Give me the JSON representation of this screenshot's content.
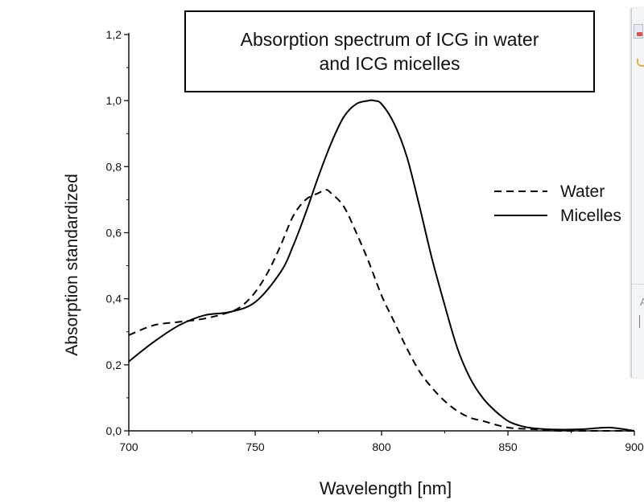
{
  "chart_data": {
    "type": "line",
    "title": [
      "Absorption spectrum of ICG in water",
      "and ICG micelles"
    ],
    "xlabel": "Wavelength [nm]",
    "ylabel": "Absorption standardized",
    "xlim": [
      700,
      900
    ],
    "ylim": [
      0.0,
      1.2
    ],
    "x_ticks": [
      700,
      750,
      800,
      850,
      900
    ],
    "x_tick_labels": [
      "700",
      "750",
      "800",
      "850",
      "900"
    ],
    "y_ticks": [
      0.0,
      0.2,
      0.4,
      0.6,
      0.8,
      1.0,
      1.2
    ],
    "y_tick_labels": [
      "0,0",
      "0,2",
      "0,4",
      "0,6",
      "0,8",
      "1,0",
      "1,2"
    ],
    "grid": false,
    "legend_position": "right",
    "series": [
      {
        "name": "Water",
        "style": "dashed",
        "x": [
          700,
          710,
          720,
          730,
          740,
          745,
          750,
          755,
          760,
          765,
          770,
          775,
          778,
          780,
          785,
          790,
          795,
          800,
          805,
          810,
          815,
          820,
          825,
          830,
          835,
          840,
          850,
          860,
          870,
          880,
          890,
          900
        ],
        "y": [
          0.29,
          0.32,
          0.33,
          0.34,
          0.36,
          0.38,
          0.42,
          0.48,
          0.56,
          0.65,
          0.7,
          0.72,
          0.73,
          0.72,
          0.68,
          0.6,
          0.51,
          0.41,
          0.33,
          0.25,
          0.18,
          0.13,
          0.09,
          0.06,
          0.04,
          0.03,
          0.01,
          0.005,
          0.0,
          0.0,
          0.0,
          0.0
        ]
      },
      {
        "name": "Micelles",
        "style": "solid",
        "x": [
          700,
          710,
          720,
          730,
          740,
          750,
          760,
          765,
          770,
          775,
          780,
          785,
          790,
          795,
          797,
          800,
          805,
          810,
          815,
          820,
          825,
          830,
          835,
          840,
          845,
          850,
          855,
          860,
          870,
          880,
          890,
          900
        ],
        "y": [
          0.21,
          0.27,
          0.32,
          0.35,
          0.36,
          0.39,
          0.48,
          0.56,
          0.66,
          0.77,
          0.87,
          0.95,
          0.99,
          1.0,
          1.0,
          0.99,
          0.93,
          0.83,
          0.68,
          0.52,
          0.38,
          0.25,
          0.16,
          0.1,
          0.06,
          0.03,
          0.015,
          0.008,
          0.004,
          0.005,
          0.01,
          0.0
        ]
      }
    ]
  },
  "colors": {
    "axis": "#111111",
    "line": "#000000",
    "background": "#ffffff"
  }
}
